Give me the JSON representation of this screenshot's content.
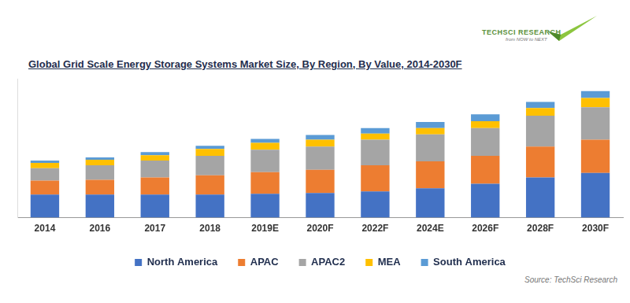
{
  "chart_data": {
    "type": "bar",
    "title": "Global Grid Scale Energy Storage Systems Market Size, By Region, By Value, 2014-2030F",
    "logo": "TechSci Research",
    "logo_tagline": "from NOW to NEXT",
    "source": "Source: TechSci Research",
    "categories": [
      "2014",
      "2016",
      "2017",
      "2018",
      "2019E",
      "2020F",
      "2022F",
      "2024E",
      "2026F",
      "2028F",
      "2030F"
    ],
    "series": [
      {
        "name": "North America",
        "color": "#4472c4",
        "values": [
          30,
          30,
          30,
          30,
          31,
          32,
          34,
          38,
          44,
          52,
          58
        ]
      },
      {
        "name": "APAC",
        "color": "#ed7d31",
        "values": [
          18,
          19,
          22,
          25,
          28,
          30,
          34,
          35,
          36,
          40,
          43
        ]
      },
      {
        "name": "APAC2",
        "color": "#a5a5a5",
        "values": [
          16,
          19,
          22,
          25,
          29,
          30,
          33,
          35,
          36,
          40,
          42
        ]
      },
      {
        "name": "MEA",
        "color": "#ffc000",
        "values": [
          7,
          7,
          7,
          9,
          9,
          9,
          8,
          8,
          9,
          10,
          12
        ]
      },
      {
        "name": "South America",
        "color": "#5b9bd5",
        "values": [
          3,
          3,
          4,
          4,
          5,
          6,
          7,
          8,
          9,
          8,
          9
        ]
      }
    ],
    "ylim": [
      0,
      180
    ],
    "stacked": true,
    "grid": false,
    "legend": "bottom",
    "tick_labels": "x"
  }
}
